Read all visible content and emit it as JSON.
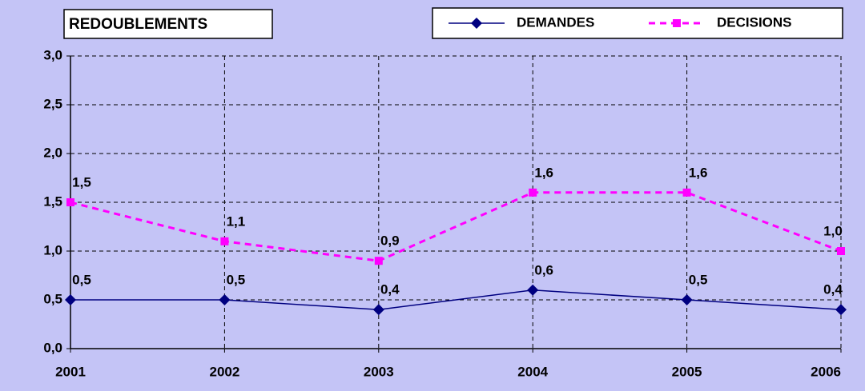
{
  "chart_data": {
    "type": "line",
    "title": "REDOUBLEMENTS",
    "categories": [
      "2001",
      "2002",
      "2003",
      "2004",
      "2005",
      "2006"
    ],
    "series": [
      {
        "name": "DEMANDES",
        "color": "#000080",
        "marker": "diamond",
        "dashed": false,
        "values": [
          0.5,
          0.5,
          0.4,
          0.6,
          0.5,
          0.4
        ],
        "value_labels": [
          "0,5",
          "0,5",
          "0,4",
          "0,6",
          "0,5",
          "0,4"
        ]
      },
      {
        "name": "DECISIONS",
        "color": "#ff00ff",
        "marker": "square",
        "dashed": true,
        "values": [
          1.5,
          1.1,
          0.9,
          1.6,
          1.6,
          1.0
        ],
        "value_labels": [
          "1,5",
          "1,1",
          "0,9",
          "1,6",
          "1,6",
          "1,0"
        ]
      }
    ],
    "ylim": [
      0,
      3
    ],
    "yticks": [
      {
        "value": 0,
        "label": "0,0"
      },
      {
        "value": 0.5,
        "label": "0,5"
      },
      {
        "value": 1,
        "label": "1,0"
      },
      {
        "value": 1.5,
        "label": "1,5"
      },
      {
        "value": 2,
        "label": "2,0"
      },
      {
        "value": 2.5,
        "label": "2,5"
      },
      {
        "value": 3,
        "label": "3,0"
      }
    ],
    "grid": true
  }
}
